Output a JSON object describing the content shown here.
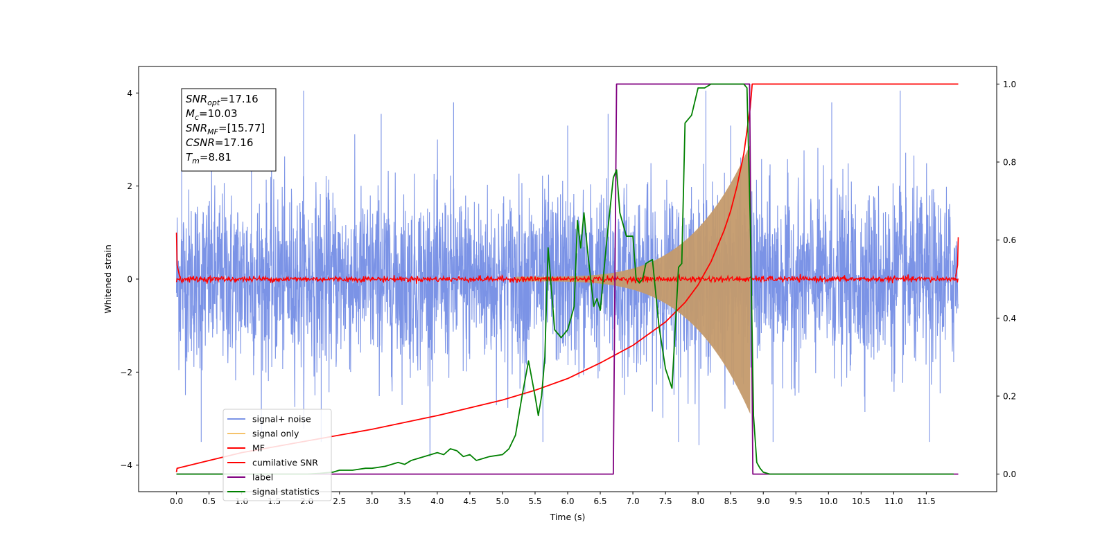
{
  "chart_data": {
    "type": "line",
    "xlabel": "Time (s)",
    "ylabel": "Whitened strain",
    "xlim": [
      -0.58,
      12.58
    ],
    "ylim": [
      -4.57,
      4.57
    ],
    "y2lim": [
      -0.045,
      1.045
    ],
    "x_ticks": [
      "0.0",
      "0.5",
      "1.0",
      "1.5",
      "2.0",
      "2.5",
      "3.0",
      "3.5",
      "4.0",
      "4.5",
      "5.0",
      "5.5",
      "6.0",
      "6.5",
      "7.0",
      "7.5",
      "8.0",
      "8.5",
      "9.0",
      "9.5",
      "10.0",
      "10.5",
      "11.0",
      "11.5"
    ],
    "y_ticks": [
      "4",
      "2",
      "0",
      "−2",
      "−4"
    ],
    "y2_ticks": [
      "1.0",
      "0.8",
      "0.6",
      "0.4",
      "0.2",
      "0.0"
    ],
    "annotation": {
      "lines": [
        {
          "base": "SNR",
          "sub": "opt",
          "rest": "=17.16"
        },
        {
          "base": "M",
          "sub": "c",
          "rest": "=10.03"
        },
        {
          "base": "SNR",
          "sub": "MF",
          "rest": "=[15.77]"
        },
        {
          "base": "CSNR",
          "sub": "",
          "rest": "=17.16"
        },
        {
          "base": "T",
          "sub": "m",
          "rest": "=8.81"
        }
      ]
    },
    "legend": {
      "placement": "lower-left",
      "entries": [
        "signal+ noise",
        "signal only",
        "MF",
        "cumilative SNR",
        "label",
        "signal statistics"
      ]
    },
    "series": [
      {
        "name": "signal+ noise",
        "color": "#7b93e6",
        "axis": "left",
        "style": "noise",
        "x_range": [
          0.0,
          11.99
        ],
        "amplitude_rms": 1.0,
        "peak_max": 4.16,
        "peak_min": -4.0
      },
      {
        "name": "signal only",
        "color": "#f5c36b",
        "axis": "left",
        "style": "chirp-envelope",
        "start": 5.2,
        "end": 8.8,
        "amplitude_start": 0.05,
        "amplitude_end": 2.9
      },
      {
        "name": "MF",
        "color": "#ff0000",
        "axis": "left",
        "style": "noise-small",
        "x_range": [
          0.0,
          11.99
        ],
        "level": 0.0,
        "amplitude": 0.06
      },
      {
        "name": "cumilative SNR",
        "color": "#ff0000",
        "axis": "right",
        "x": [
          0.0,
          0.01,
          0.5,
          1.0,
          2.0,
          3.0,
          4.0,
          5.0,
          5.5,
          6.0,
          6.5,
          7.0,
          7.5,
          7.8,
          8.0,
          8.2,
          8.4,
          8.5,
          8.6,
          8.7,
          8.75,
          8.8,
          8.83,
          11.99
        ],
        "y": [
          0.005,
          0.015,
          0.035,
          0.055,
          0.085,
          0.115,
          0.15,
          0.19,
          0.215,
          0.245,
          0.285,
          0.33,
          0.39,
          0.44,
          0.485,
          0.545,
          0.625,
          0.675,
          0.74,
          0.82,
          0.88,
          0.94,
          1.0,
          1.0
        ]
      },
      {
        "name": "label",
        "color": "#800080",
        "axis": "right",
        "x": [
          0.0,
          6.7,
          6.75,
          8.79,
          8.84,
          11.99
        ],
        "y": [
          0.0,
          0.0,
          1.0,
          1.0,
          0.0,
          0.0
        ]
      },
      {
        "name": "signal statistics",
        "color": "#008000",
        "axis": "right",
        "x": [
          0.0,
          2.0,
          2.2,
          2.4,
          2.5,
          2.7,
          2.9,
          3.0,
          3.2,
          3.4,
          3.5,
          3.6,
          3.7,
          3.9,
          4.0,
          4.1,
          4.2,
          4.3,
          4.4,
          4.5,
          4.6,
          4.7,
          4.8,
          5.0,
          5.1,
          5.2,
          5.3,
          5.4,
          5.5,
          5.55,
          5.6,
          5.65,
          5.7,
          5.8,
          5.9,
          6.0,
          6.1,
          6.15,
          6.2,
          6.25,
          6.3,
          6.4,
          6.45,
          6.5,
          6.6,
          6.7,
          6.75,
          6.8,
          6.9,
          7.0,
          7.05,
          7.1,
          7.15,
          7.2,
          7.3,
          7.4,
          7.5,
          7.6,
          7.7,
          7.75,
          7.8,
          7.9,
          8.0,
          8.1,
          8.2,
          8.3,
          8.5,
          8.6,
          8.7,
          8.75,
          8.8,
          8.85,
          8.9,
          8.95,
          9.0,
          9.1,
          11.92
        ],
        "y": [
          0.0,
          0.0,
          0.002,
          0.005,
          0.01,
          0.01,
          0.015,
          0.015,
          0.02,
          0.03,
          0.025,
          0.035,
          0.04,
          0.05,
          0.055,
          0.05,
          0.065,
          0.06,
          0.045,
          0.05,
          0.035,
          0.04,
          0.045,
          0.05,
          0.065,
          0.1,
          0.2,
          0.29,
          0.2,
          0.15,
          0.2,
          0.3,
          0.58,
          0.37,
          0.35,
          0.37,
          0.43,
          0.65,
          0.58,
          0.67,
          0.58,
          0.43,
          0.45,
          0.42,
          0.6,
          0.76,
          0.78,
          0.67,
          0.61,
          0.61,
          0.5,
          0.49,
          0.5,
          0.54,
          0.55,
          0.38,
          0.27,
          0.22,
          0.53,
          0.54,
          0.9,
          0.92,
          0.99,
          0.99,
          1.0,
          1.0,
          1.0,
          1.0,
          1.0,
          0.99,
          0.65,
          0.15,
          0.03,
          0.015,
          0.005,
          0.0,
          0.0
        ]
      }
    ]
  }
}
